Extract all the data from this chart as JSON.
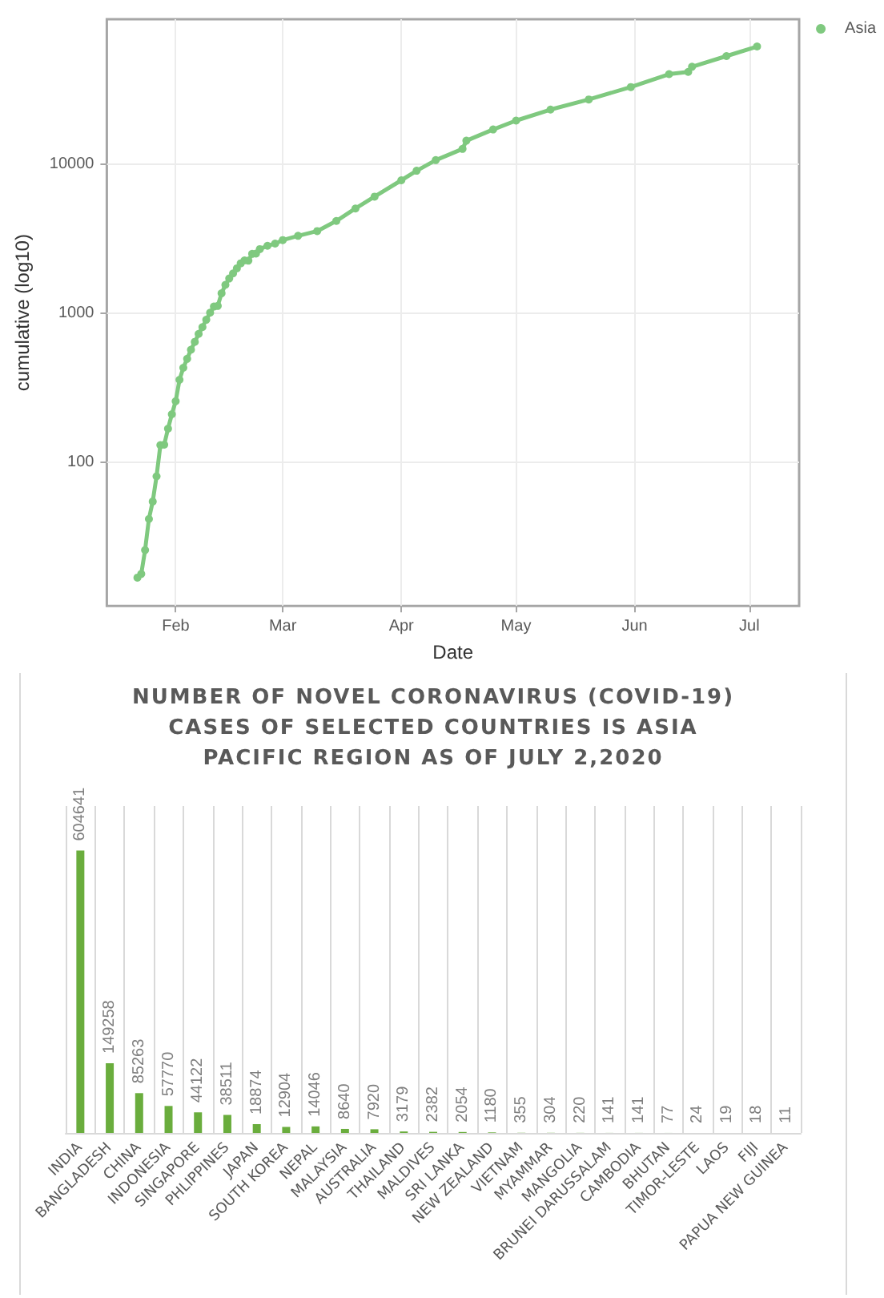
{
  "chart_data": [
    {
      "type": "line",
      "xlabel": "Date",
      "ylabel": "cumulative (log10)",
      "x": [
        "--01-22",
        "--01-23",
        "--01-24",
        "--01-25",
        "--01-26",
        "--01-27",
        "--01-28",
        "--01-29",
        "--01-30",
        "--01-31",
        "--02-01",
        "--02-02",
        "--02-03",
        "--02-04",
        "--02-05",
        "--02-06",
        "--02-07",
        "--02-08",
        "--02-09",
        "--02-10",
        "--02-11",
        "--02-12",
        "--02-13",
        "--02-14",
        "--02-15",
        "--02-16",
        "--02-17",
        "--02-18",
        "--02-19",
        "--02-20",
        "--02-21",
        "--02-22",
        "--02-23",
        "--02-25",
        "--02-27",
        "--03-01",
        "--03-05",
        "--03-10",
        "--03-15",
        "--03-20",
        "--03-25",
        "--04-01",
        "--04-05",
        "--04-10",
        "--04-17",
        "--04-18",
        "--04-25",
        "--05-01",
        "--05-10",
        "--05-20",
        "--05-31",
        "--06-10",
        "--06-15",
        "--06-16",
        "--06-25",
        "--07-03"
      ],
      "series": [
        {
          "name": "Asia",
          "color": "#7fc97f",
          "values": [
            17,
            18,
            26,
            42,
            55,
            81,
            131,
            132,
            169,
            211,
            258,
            359,
            432,
            496,
            570,
            644,
            728,
            808,
            905,
            1010,
            1110,
            1120,
            1360,
            1550,
            1710,
            1850,
            2000,
            2160,
            2260,
            2250,
            2500,
            2510,
            2690,
            2830,
            2930,
            3090,
            3300,
            3550,
            4150,
            5030,
            6040,
            7770,
            9000,
            10600,
            12600,
            14300,
            17000,
            19500,
            23100,
            27000,
            32700,
            39900,
            41300,
            44700,
            52700,
            61100
          ]
        }
      ],
      "xlim": [
        "--01-14",
        "--07-14"
      ],
      "xticks": [
        {
          "value": "--02-01",
          "label": "Feb"
        },
        {
          "value": "--03-01",
          "label": "Mar"
        },
        {
          "value": "--04-01",
          "label": "Apr"
        },
        {
          "value": "--05-01",
          "label": "May"
        },
        {
          "value": "--06-01",
          "label": "Jun"
        },
        {
          "value": "--07-01",
          "label": "Jul"
        }
      ],
      "ylim": [
        11,
        93000
      ],
      "yticks": [
        100,
        1000,
        10000
      ],
      "log": "y",
      "grid": true,
      "legend": "top right",
      "marker": "circle",
      "line_style": "solid"
    },
    {
      "type": "bar",
      "title": "NUMBER OF NOVEL CORONAVIRUS (COVID-19) CASES OF SELECTED COUNTRIES IS ASIA PACIFIC REGION AS OF JULY 2,2020",
      "categories": [
        "INDIA",
        "BANGLADESH",
        "CHINA",
        "INDONESIA",
        "SINGAPORE",
        "PHLIPPINES",
        "JAPAN",
        "SOUTH KOREA",
        "NEPAL",
        "MALAYSIA",
        "AUSTRALIA",
        "THAILAND",
        "MALDIVES",
        "SRI LANKA",
        "NEW ZEALAND",
        "VIETNAM",
        "MYAMMAR",
        "MANGOLIA",
        "BRUNEI DARUSSALAM",
        "CAMBODIA",
        "BHUTAN",
        "TIMOR-LESTE",
        "LAOS",
        "FIJI",
        "PAPUA NEW GUINEA"
      ],
      "values": [
        604641,
        149258,
        85263,
        57770,
        44122,
        38511,
        18874,
        12904,
        14046,
        8640,
        7920,
        3179,
        2382,
        2054,
        1180,
        355,
        304,
        220,
        141,
        141,
        77,
        24,
        19,
        18,
        11
      ],
      "color": "#6aad3d",
      "data_labels": true,
      "tick_labels": "x",
      "grid": "x"
    }
  ]
}
